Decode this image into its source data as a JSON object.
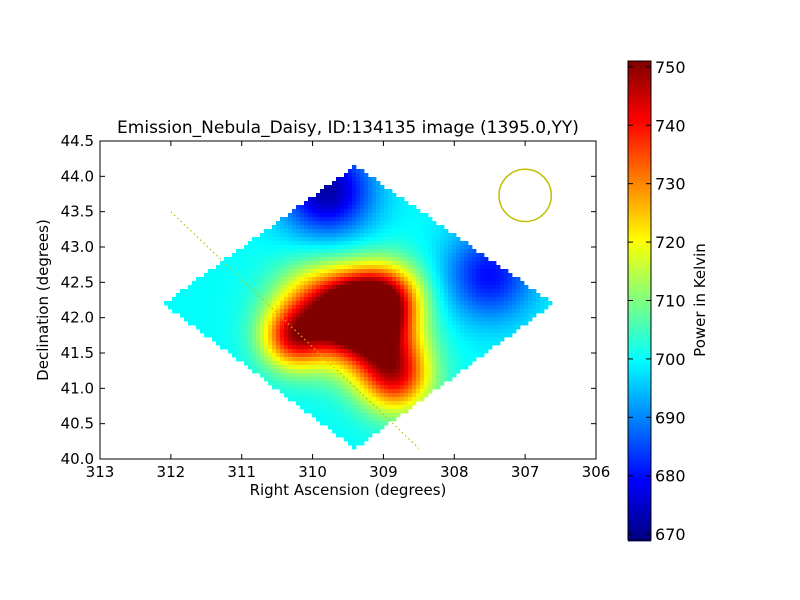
{
  "chart_data": {
    "type": "heatmap",
    "title": "Emission_Nebula_Daisy, ID:134135 image (1395.0,YY)",
    "xlabel": "Right Ascension (degrees)",
    "ylabel": "Declination (degrees)",
    "xlim": [
      313,
      306
    ],
    "ylim": [
      40.0,
      44.5
    ],
    "xticks": [
      "313",
      "312",
      "311",
      "310",
      "309",
      "308",
      "307",
      "306"
    ],
    "yticks": [
      "40.0",
      "40.5",
      "41.0",
      "41.5",
      "42.0",
      "42.5",
      "43.0",
      "43.5",
      "44.0",
      "44.5"
    ],
    "colorbar": {
      "label": "Power in Kelvin",
      "range": [
        669,
        751
      ],
      "ticks": [
        "670",
        "680",
        "690",
        "700",
        "710",
        "720",
        "730",
        "740",
        "750"
      ],
      "colormap": "jet"
    },
    "footprint": [
      [
        309.4,
        44.15
      ],
      [
        306.6,
        42.2
      ],
      [
        309.4,
        40.15
      ],
      [
        312.1,
        42.2
      ]
    ],
    "hotspots": [
      {
        "ra": 309.3,
        "dec": 42.1,
        "value": 750,
        "sigma": 0.35
      },
      {
        "ra": 309.85,
        "dec": 42.05,
        "value": 742,
        "sigma": 0.45
      },
      {
        "ra": 309.0,
        "dec": 41.55,
        "value": 732,
        "sigma": 0.4
      },
      {
        "ra": 308.8,
        "dec": 41.1,
        "value": 728,
        "sigma": 0.35
      },
      {
        "ra": 308.9,
        "dec": 42.3,
        "value": 730,
        "sigma": 0.35
      },
      {
        "ra": 310.3,
        "dec": 41.7,
        "value": 728,
        "sigma": 0.3
      }
    ],
    "coldspots": [
      {
        "ra": 309.8,
        "dec": 43.8,
        "value": 672,
        "sigma": 0.45
      },
      {
        "ra": 307.5,
        "dec": 42.6,
        "value": 680,
        "sigma": 0.45
      }
    ],
    "baseline_value": 700,
    "beam_circle": {
      "ra": 307.0,
      "dec": 43.73,
      "radius_deg": 0.37,
      "color": "#bfbf00"
    },
    "scan_line": {
      "start": [
        312.0,
        43.5
      ],
      "end": [
        308.5,
        40.15
      ],
      "color": "#bfbf00"
    }
  }
}
